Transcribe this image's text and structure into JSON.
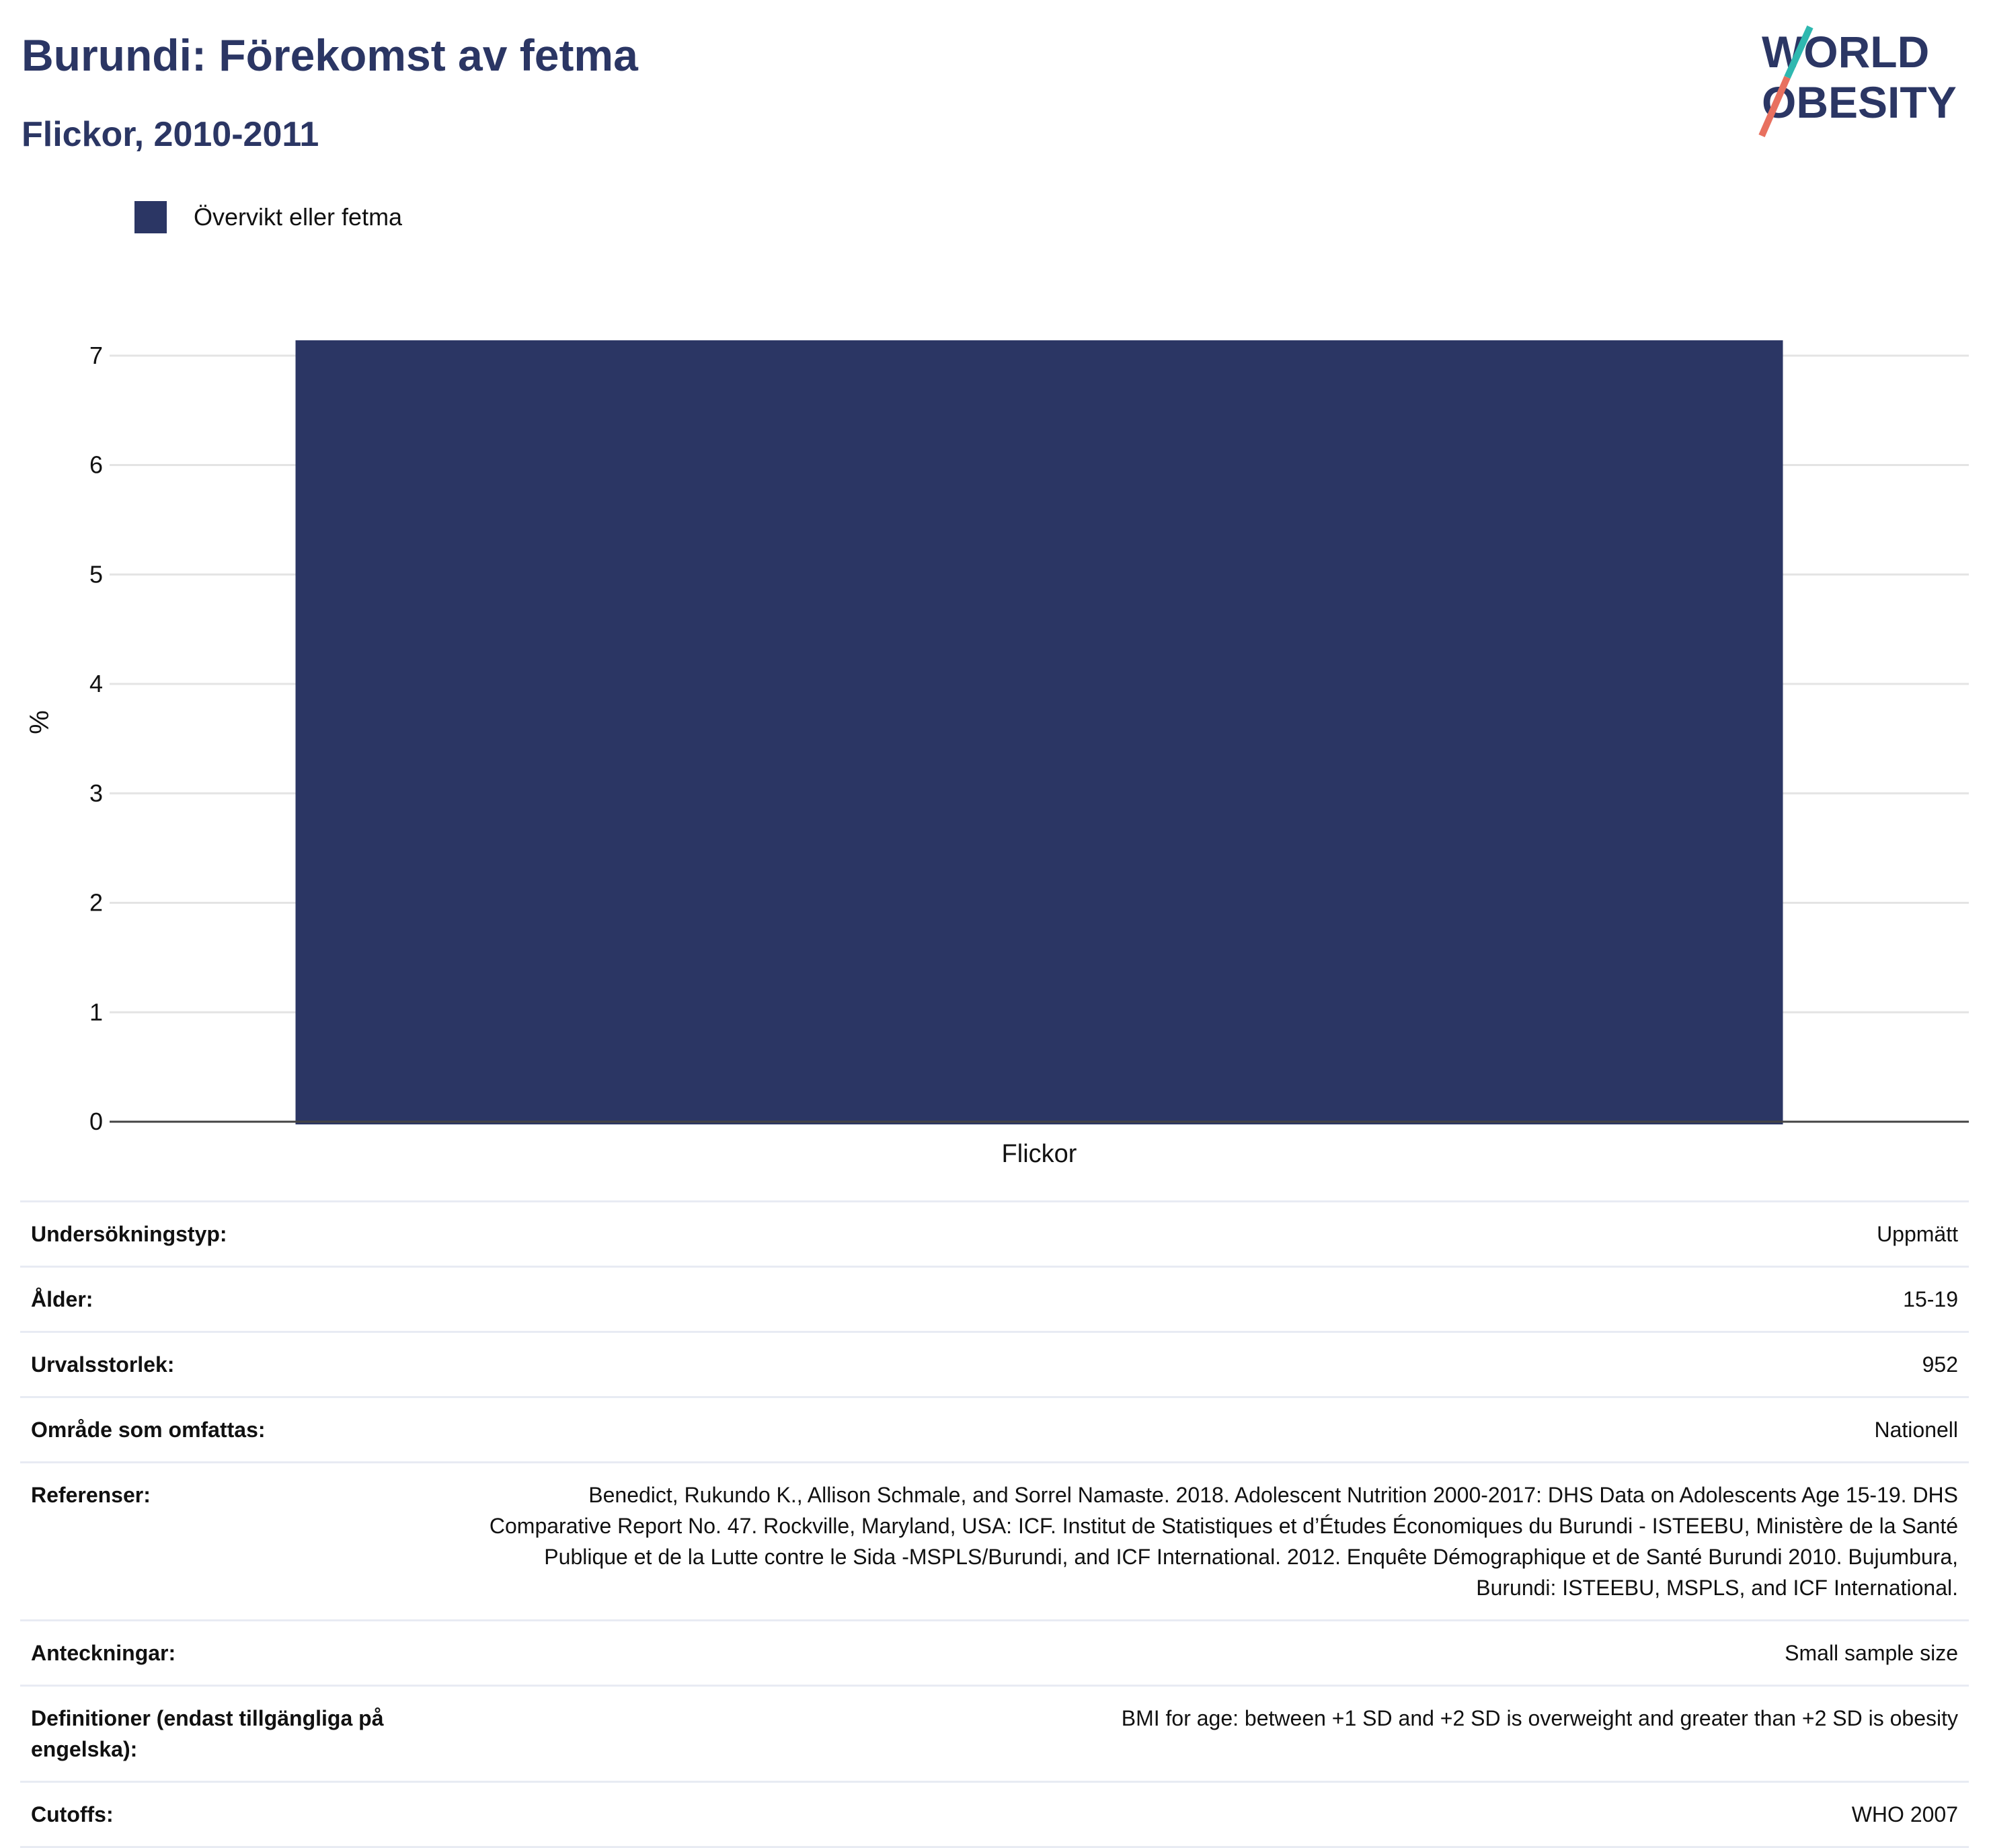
{
  "header": {
    "title": "Burundi: Förekomst av fetma",
    "subtitle": "Flickor, 2010-2011"
  },
  "logo": {
    "line1": "WORLD",
    "line2": "OBESITY",
    "colors": {
      "text": "#2b3664",
      "slash_top": "#2fb8b0",
      "slash_bottom": "#e8705f"
    }
  },
  "legend": {
    "items": [
      {
        "label": "Övervikt eller fetma",
        "color": "#2b3664"
      }
    ]
  },
  "chart_data": {
    "type": "bar",
    "categories": [
      "Flickor"
    ],
    "series": [
      {
        "name": "Övervikt eller fetma",
        "values": [
          7.14
        ],
        "color": "#2b3664"
      }
    ],
    "title": "",
    "xlabel": "",
    "ylabel": "%",
    "ylim": [
      0,
      7.3
    ],
    "yticks": [
      0,
      1,
      2,
      3,
      4,
      5,
      6,
      7
    ],
    "grid": true,
    "legend_position": "top-left"
  },
  "details": {
    "rows": [
      {
        "label": "Undersökningstyp:",
        "value": "Uppmätt"
      },
      {
        "label": "Ålder:",
        "value": "15-19"
      },
      {
        "label": "Urvalsstorlek:",
        "value": "952"
      },
      {
        "label": "Område som omfattas:",
        "value": "Nationell"
      },
      {
        "label": "Referenser:",
        "value": "Benedict, Rukundo K., Allison Schmale, and Sorrel Namaste. 2018. Adolescent Nutrition 2000-2017: DHS Data on Adolescents Age 15-19. DHS Comparative Report No. 47. Rockville, Maryland, USA: ICF. Institut de Statistiques et d’Études Économiques du Burundi - ISTEEBU, Ministère de la Santé Publique et de la Lutte contre le Sida -MSPLS/Burundi, and ICF International. 2012. Enquête Démographique et de Santé Burundi 2010. Bujumbura, Burundi: ISTEEBU, MSPLS, and ICF International."
      },
      {
        "label": "Anteckningar:",
        "value": "Small sample size"
      },
      {
        "label": "Definitioner (endast tillgängliga på engelska):",
        "value": "BMI for age: between +1 SD and +2 SD is overweight and greater than +2 SD is obesity"
      },
      {
        "label": "Cutoffs:",
        "value": "WHO 2007"
      }
    ]
  }
}
